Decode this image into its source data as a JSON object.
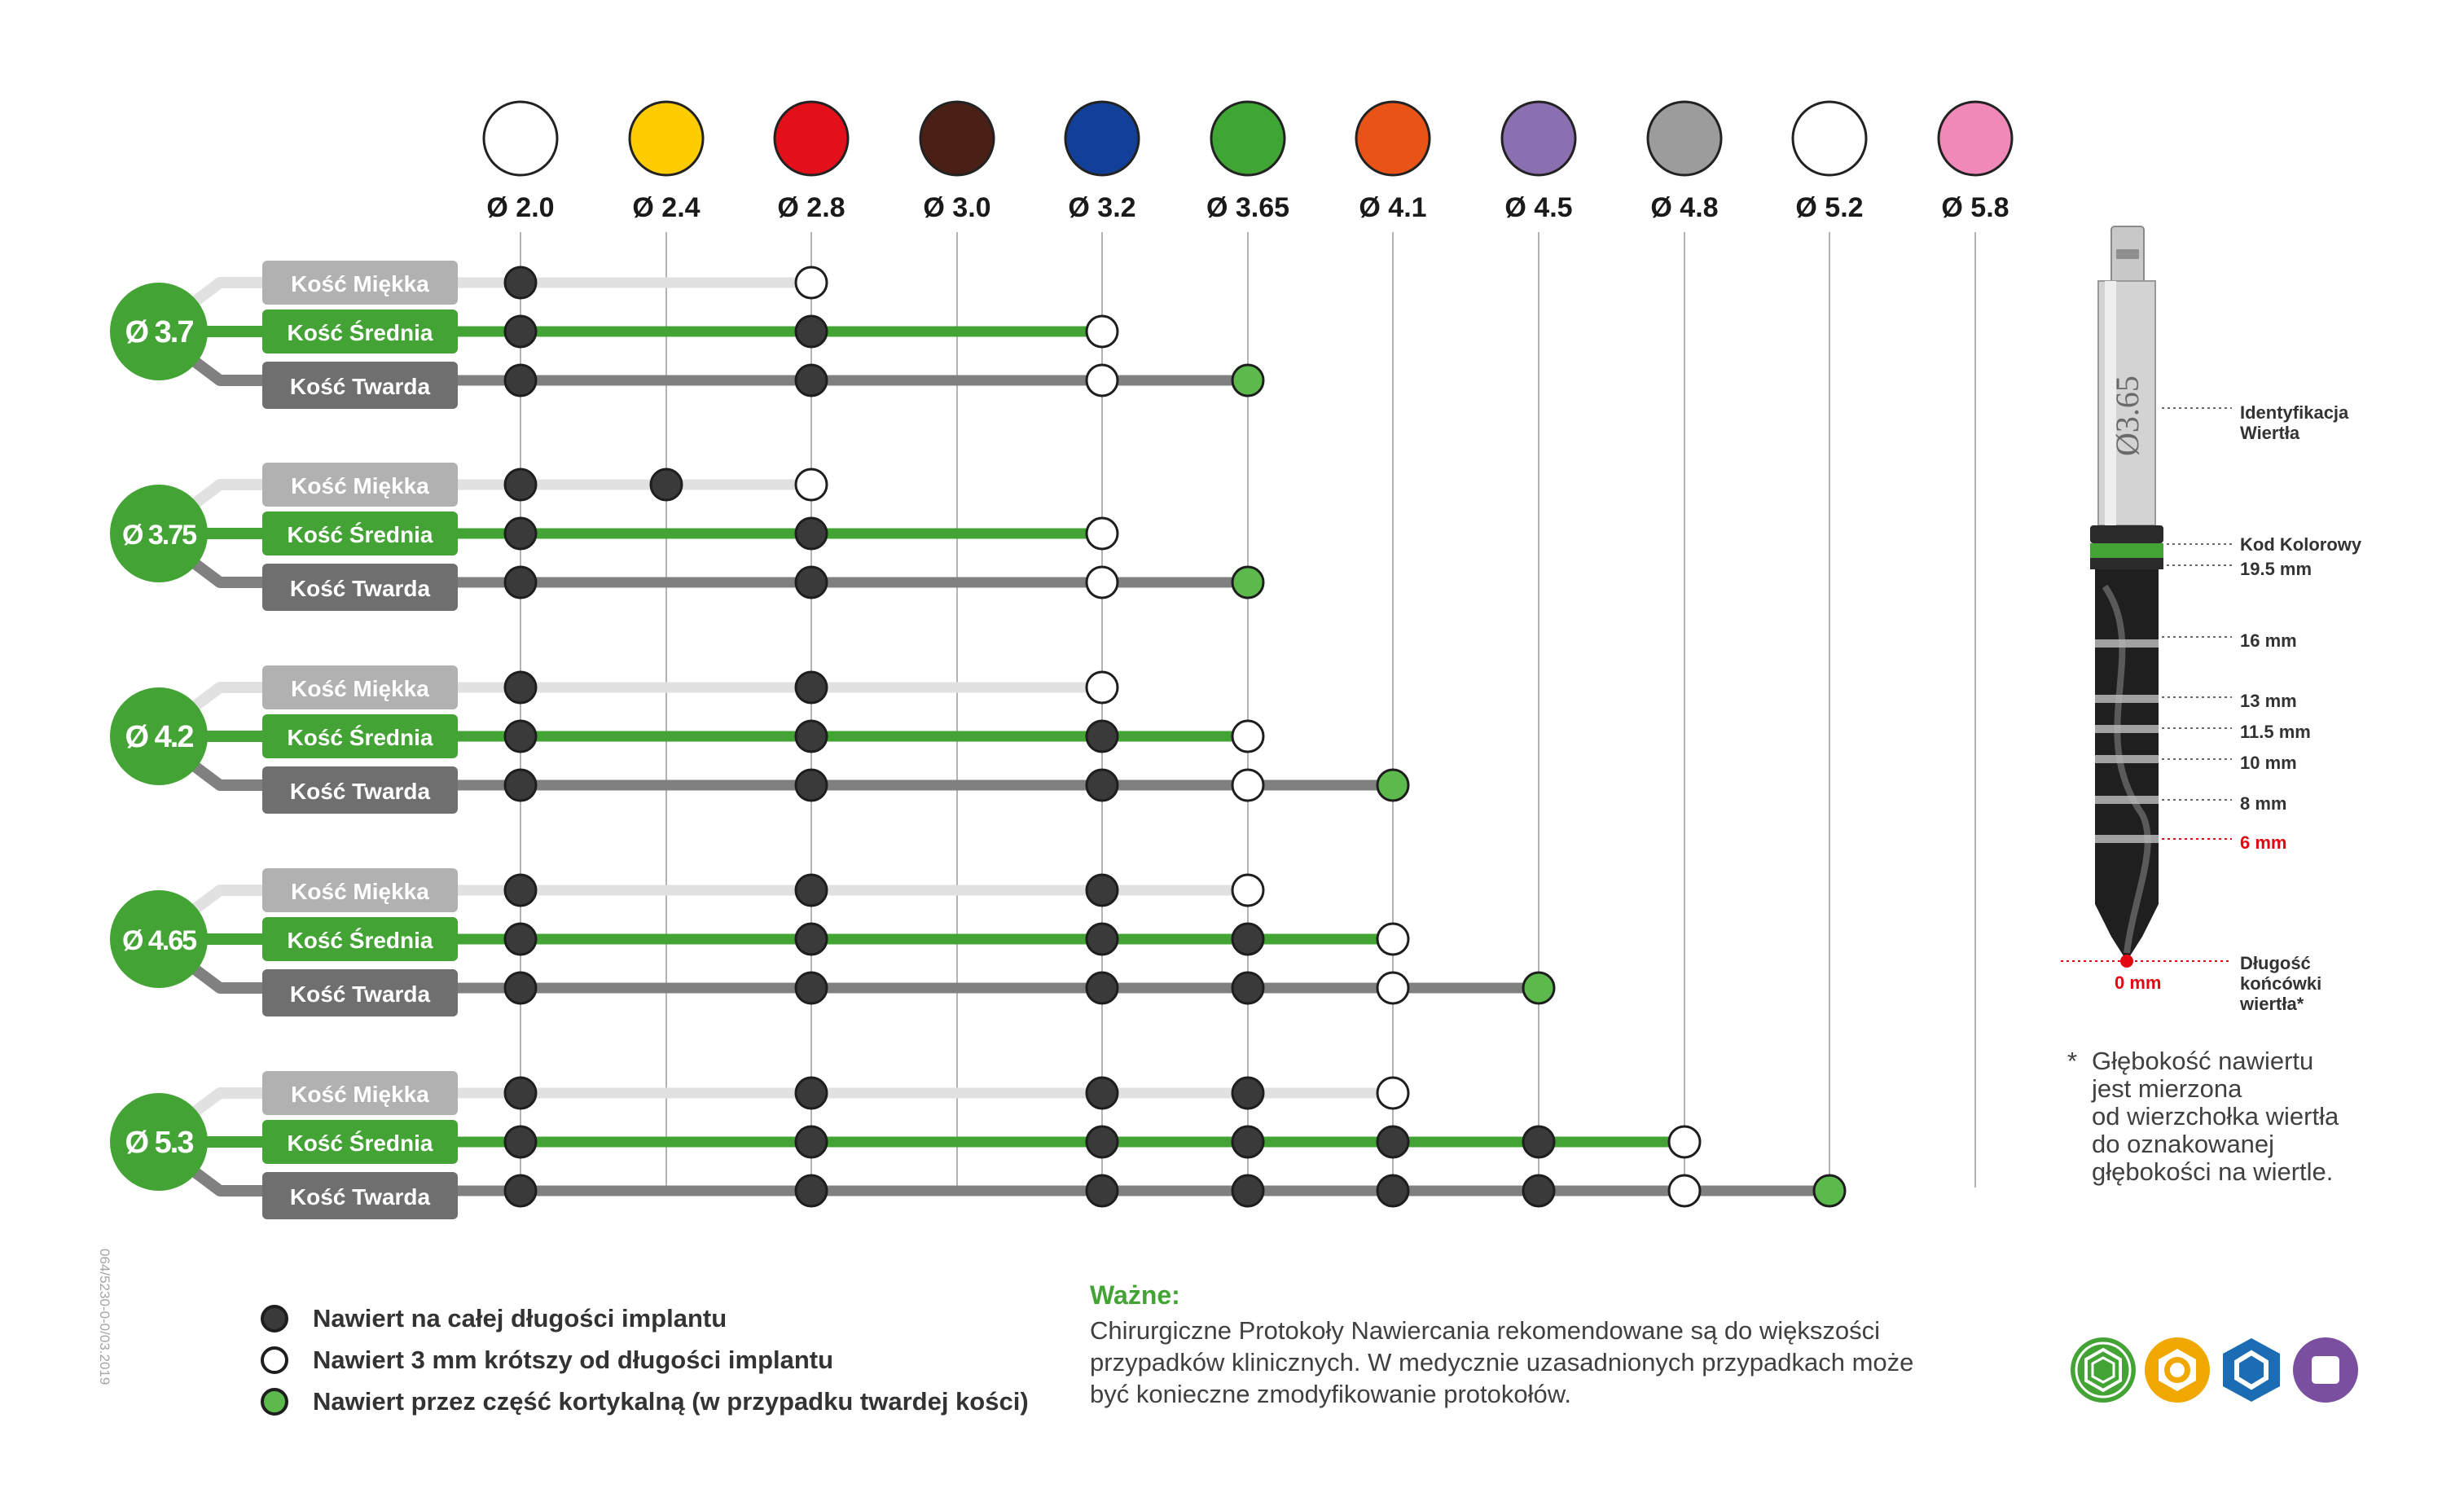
{
  "drills": [
    {
      "label": "Ø 2.0",
      "color": "#ffffff"
    },
    {
      "label": "Ø 2.4",
      "color": "#ffcc00"
    },
    {
      "label": "Ø 2.8",
      "color": "#e3101b"
    },
    {
      "label": "Ø 3.0",
      "color": "#4a2016"
    },
    {
      "label": "Ø 3.2",
      "color": "#123f97"
    },
    {
      "label": "Ø 3.65",
      "color": "#3fa535"
    },
    {
      "label": "Ø 4.1",
      "color": "#ea5316"
    },
    {
      "label": "Ø 4.5",
      "color": "#8a6fb1"
    },
    {
      "label": "Ø 4.8",
      "color": "#9c9c9c"
    },
    {
      "label": "Ø 5.2",
      "color": "#ffffff"
    },
    {
      "label": "Ø 5.8",
      "color": "#f088b8"
    }
  ],
  "bone_colors": {
    "soft": "#b1b1b1",
    "medium": "#43a435",
    "hard": "#6f6f6f"
  },
  "line_colors": {
    "soft": "#e1e1e1",
    "medium": "#43a435",
    "hard": "#808080"
  },
  "implants": [
    {
      "label": "Ø 3.7",
      "rows": [
        {
          "bone": "soft",
          "label": "Kość Miękka",
          "marks": [
            "F",
            null,
            "S"
          ]
        },
        {
          "bone": "medium",
          "label": "Kość Średnia",
          "marks": [
            "F",
            null,
            "F",
            null,
            "S"
          ]
        },
        {
          "bone": "hard",
          "label": "Kość Twarda",
          "marks": [
            "F",
            null,
            "F",
            null,
            "S",
            "C"
          ]
        }
      ]
    },
    {
      "label": "Ø 3.75",
      "rows": [
        {
          "bone": "soft",
          "label": "Kość Miękka",
          "marks": [
            "F",
            "F",
            "S"
          ]
        },
        {
          "bone": "medium",
          "label": "Kość Średnia",
          "marks": [
            "F",
            null,
            "F",
            null,
            "S"
          ]
        },
        {
          "bone": "hard",
          "label": "Kość Twarda",
          "marks": [
            "F",
            null,
            "F",
            null,
            "S",
            "C"
          ]
        }
      ]
    },
    {
      "label": "Ø 4.2",
      "rows": [
        {
          "bone": "soft",
          "label": "Kość Miękka",
          "marks": [
            "F",
            null,
            "F",
            null,
            "S"
          ]
        },
        {
          "bone": "medium",
          "label": "Kość Średnia",
          "marks": [
            "F",
            null,
            "F",
            null,
            "F",
            "S"
          ]
        },
        {
          "bone": "hard",
          "label": "Kość Twarda",
          "marks": [
            "F",
            null,
            "F",
            null,
            "F",
            "S",
            "C"
          ]
        }
      ]
    },
    {
      "label": "Ø 4.65",
      "rows": [
        {
          "bone": "soft",
          "label": "Kość Miękka",
          "marks": [
            "F",
            null,
            "F",
            null,
            "F",
            "S"
          ]
        },
        {
          "bone": "medium",
          "label": "Kość Średnia",
          "marks": [
            "F",
            null,
            "F",
            null,
            "F",
            "F",
            "S"
          ]
        },
        {
          "bone": "hard",
          "label": "Kość Twarda",
          "marks": [
            "F",
            null,
            "F",
            null,
            "F",
            "F",
            "S",
            "C"
          ]
        }
      ]
    },
    {
      "label": "Ø 5.3",
      "rows": [
        {
          "bone": "soft",
          "label": "Kość Miękka",
          "marks": [
            "F",
            null,
            "F",
            null,
            "F",
            "F",
            "S"
          ]
        },
        {
          "bone": "medium",
          "label": "Kość Średnia",
          "marks": [
            "F",
            null,
            "F",
            null,
            "F",
            "F",
            "F",
            "F",
            "S"
          ]
        },
        {
          "bone": "hard",
          "label": "Kość Twarda",
          "marks": [
            "F",
            null,
            "F",
            null,
            "F",
            "F",
            "F",
            "F",
            "S",
            "C"
          ]
        }
      ]
    }
  ],
  "legend": [
    {
      "type": "F",
      "text": "Nawiert na całej długości implantu"
    },
    {
      "type": "S",
      "text": "Nawiert 3 mm krótszy od długości implantu"
    },
    {
      "type": "C",
      "text": "Nawiert przez część kortykalną (w przypadku twardej kości)"
    }
  ],
  "mark_colors": {
    "F": "#3a3a3a",
    "S": "#ffffff",
    "C": "#5cb94c"
  },
  "important": {
    "title": "Ważne:",
    "body": "Chirurgiczne Protokoły Nawiercania rekomendowane są do większości przypadków klinicznych. W medycznie uzasadnionych przypadkach może być konieczne zmodyfikowanie protokołów."
  },
  "drill_diagram": {
    "engraving": "Ø3.65",
    "id_label": "Identyfikacja\nWiertła",
    "color_code_label": "Kod Kolorowy",
    "depths": [
      "19.5 mm",
      "16 mm",
      "13 mm",
      "11.5 mm",
      "10 mm",
      "8 mm",
      "6 mm"
    ],
    "zero_label": "0 mm",
    "tip_label": "Długość\nkońcówki\nwiertła*",
    "ring_color": "#43a435",
    "highlight_color": "#e30613"
  },
  "footnote": {
    "star": "*",
    "text": "Głębokość nawiertu\njest mierzona\nod wierzchołka wiertła\ndo oznakowanej\ngłębokości na wiertle."
  },
  "doc_code": "064/5230-0-0/03.2019",
  "logos": [
    {
      "icon": "hexagon-internal-icon",
      "color": "#43a435"
    },
    {
      "icon": "hexagon-conical-icon",
      "color": "#f0a800"
    },
    {
      "icon": "hexagon-external-icon",
      "color": "#1c6cb4"
    },
    {
      "icon": "square-connection-icon",
      "color": "#7b4fa0"
    }
  ]
}
